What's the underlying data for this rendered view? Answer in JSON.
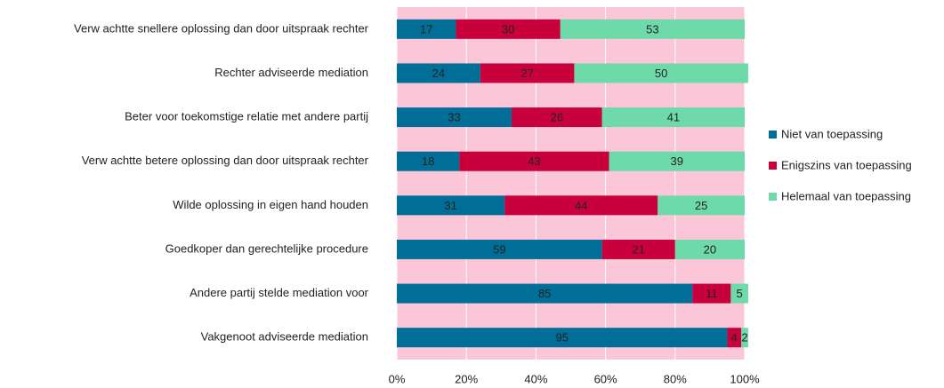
{
  "chart_data": {
    "type": "stacked-barh",
    "categories": [
      "Verw achtte snellere oplossing dan door uitspraak rechter",
      "Rechter adviseerde mediation",
      "Beter voor toekomstige relatie met andere partij",
      "Verw achtte betere oplossing dan door uitspraak rechter",
      "Wilde oplossing in eigen hand houden",
      "Goedkoper dan gerechtelijke procedure",
      "Andere partij stelde mediation voor",
      "Vakgenoot adviseerde mediation"
    ],
    "series": [
      {
        "name": "Niet van toepassing",
        "color": "#006e96",
        "values": [
          17,
          24,
          33,
          18,
          31,
          59,
          85,
          95
        ]
      },
      {
        "name": "Enigszins van toepassing",
        "color": "#c8003c",
        "values": [
          30,
          27,
          26,
          43,
          44,
          21,
          11,
          4
        ]
      },
      {
        "name": "Helemaal van toepassing",
        "color": "#6ed9a9",
        "values": [
          53,
          50,
          41,
          39,
          25,
          20,
          5,
          2
        ]
      }
    ],
    "xlim": [
      0,
      100
    ],
    "xticks": [
      {
        "value": 0,
        "label": "0%"
      },
      {
        "value": 20,
        "label": "20%"
      },
      {
        "value": 40,
        "label": "40%"
      },
      {
        "value": 60,
        "label": "60%"
      },
      {
        "value": 80,
        "label": "80%"
      },
      {
        "value": 100,
        "label": "100%"
      }
    ],
    "grid": true,
    "legend": "right"
  }
}
